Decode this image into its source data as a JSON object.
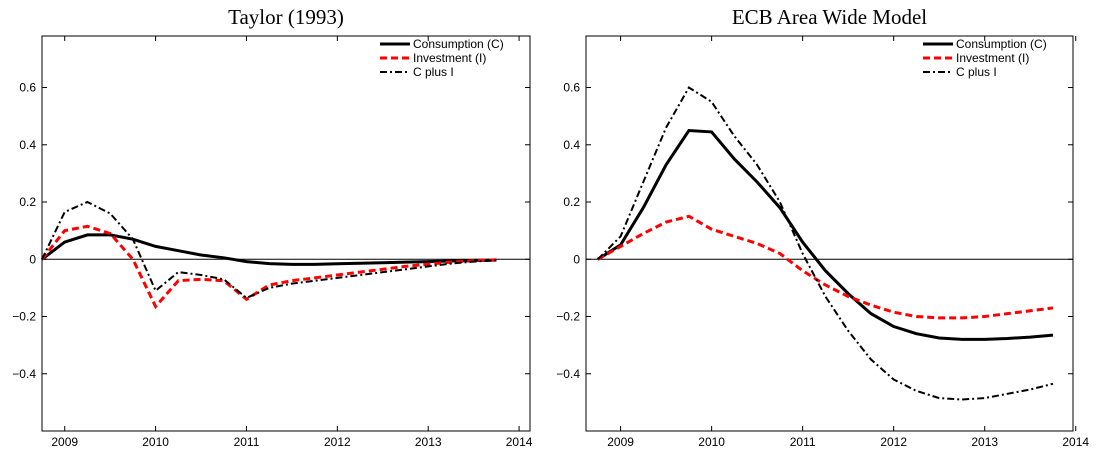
{
  "chart_data": [
    {
      "type": "line",
      "title": "Taylor (1993)",
      "x": [
        2008.75,
        2009,
        2009.25,
        2009.5,
        2009.75,
        2010,
        2010.25,
        2010.5,
        2010.75,
        2011,
        2011.25,
        2011.5,
        2011.75,
        2012,
        2012.25,
        2012.5,
        2012.75,
        2013,
        2013.25,
        2013.5,
        2013.75
      ],
      "series": [
        {
          "name": "Consumption (C)",
          "color": "#000000",
          "style": "solid",
          "values": [
            0,
            0.06,
            0.085,
            0.085,
            0.07,
            0.045,
            0.03,
            0.015,
            0.005,
            -0.008,
            -0.015,
            -0.018,
            -0.018,
            -0.016,
            -0.014,
            -0.012,
            -0.01,
            -0.008,
            -0.006,
            -0.004,
            -0.003
          ]
        },
        {
          "name": "Investment (I)",
          "color": "#ff0000",
          "style": "dashed",
          "values": [
            0,
            0.1,
            0.115,
            0.09,
            0.0,
            -0.165,
            -0.075,
            -0.07,
            -0.075,
            -0.14,
            -0.09,
            -0.075,
            -0.065,
            -0.055,
            -0.045,
            -0.035,
            -0.025,
            -0.017,
            -0.01,
            -0.005,
            -0.002
          ]
        },
        {
          "name": "C plus I",
          "color": "#000000",
          "style": "dashdot",
          "values": [
            0,
            0.165,
            0.2,
            0.16,
            0.07,
            -0.11,
            -0.045,
            -0.055,
            -0.07,
            -0.135,
            -0.1,
            -0.085,
            -0.075,
            -0.065,
            -0.055,
            -0.045,
            -0.035,
            -0.025,
            -0.015,
            -0.008,
            -0.004
          ]
        }
      ],
      "xlim": [
        2008.75,
        2014.12
      ],
      "xticks": [
        2009,
        2010,
        2011,
        2012,
        2013,
        2014
      ],
      "ylim": [
        -0.6,
        0.78
      ],
      "yticks": [
        {
          "value": -0.4,
          "label": "−0.4"
        },
        {
          "value": -0.2,
          "label": "−0.2"
        },
        0,
        0.2,
        0.4,
        0.6
      ],
      "hline": 0,
      "legend": "top-right"
    },
    {
      "type": "line",
      "title": "ECB Area Wide Model",
      "x": [
        2008.75,
        2009,
        2009.25,
        2009.5,
        2009.75,
        2010,
        2010.25,
        2010.5,
        2010.75,
        2011,
        2011.25,
        2011.5,
        2011.75,
        2012,
        2012.25,
        2012.5,
        2012.75,
        2013,
        2013.25,
        2013.5,
        2013.75
      ],
      "series": [
        {
          "name": "Consumption (C)",
          "color": "#000000",
          "style": "solid",
          "values": [
            0,
            0.05,
            0.18,
            0.33,
            0.45,
            0.445,
            0.35,
            0.27,
            0.18,
            0.06,
            -0.04,
            -0.12,
            -0.19,
            -0.235,
            -0.26,
            -0.275,
            -0.28,
            -0.28,
            -0.277,
            -0.272,
            -0.265
          ]
        },
        {
          "name": "Investment (I)",
          "color": "#ff0000",
          "style": "dashed",
          "values": [
            0,
            0.045,
            0.09,
            0.13,
            0.15,
            0.105,
            0.08,
            0.055,
            0.02,
            -0.04,
            -0.09,
            -0.13,
            -0.16,
            -0.185,
            -0.2,
            -0.205,
            -0.205,
            -0.2,
            -0.19,
            -0.18,
            -0.17
          ]
        },
        {
          "name": "C plus I",
          "color": "#000000",
          "style": "dashdot",
          "values": [
            0,
            0.08,
            0.27,
            0.46,
            0.6,
            0.55,
            0.43,
            0.33,
            0.2,
            0.02,
            -0.13,
            -0.25,
            -0.35,
            -0.42,
            -0.46,
            -0.485,
            -0.49,
            -0.485,
            -0.47,
            -0.455,
            -0.435
          ]
        }
      ],
      "xlim": [
        2008.62,
        2013.97
      ],
      "xticks": [
        2009,
        2010,
        2011,
        2012,
        2013,
        2014
      ],
      "ylim": [
        -0.6,
        0.78
      ],
      "yticks": [
        {
          "value": -0.4,
          "label": "−0.4"
        },
        {
          "value": -0.2,
          "label": "−0.2"
        },
        0,
        0.2,
        0.4,
        0.6
      ],
      "hline": 0,
      "legend": "top-right"
    }
  ]
}
